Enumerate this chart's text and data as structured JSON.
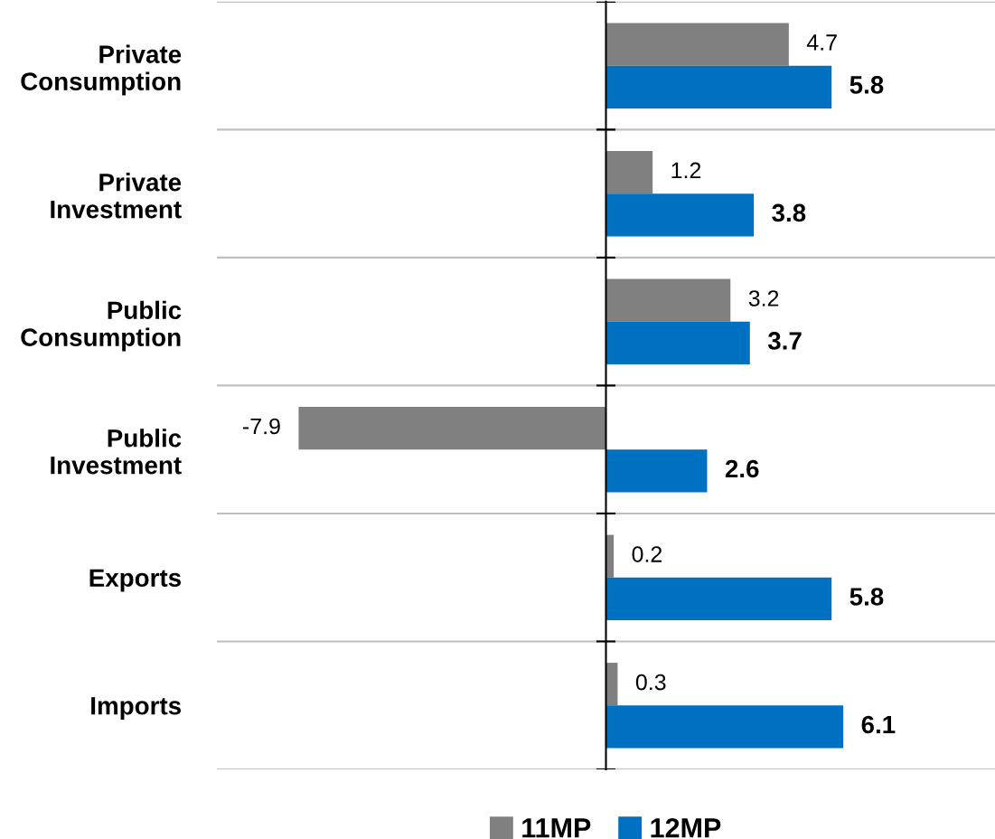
{
  "chart_data": {
    "type": "bar",
    "orientation": "horizontal",
    "categories": [
      "Private\nConsumption",
      "Private\nInvestment",
      "Public\nConsumption",
      "Public\nInvestment",
      "Exports",
      "Imports"
    ],
    "series": [
      {
        "name": "11MP",
        "color": "#808080",
        "values": [
          4.7,
          1.2,
          3.2,
          -7.9,
          0.2,
          0.3
        ]
      },
      {
        "name": "12MP",
        "color": "#0070c0",
        "values": [
          5.8,
          3.8,
          3.7,
          2.6,
          5.8,
          6.1
        ]
      }
    ],
    "xlim": [
      -10,
      10
    ],
    "data_labels": true,
    "grid": "y",
    "legend": "bottom",
    "tick_labels": "y"
  }
}
